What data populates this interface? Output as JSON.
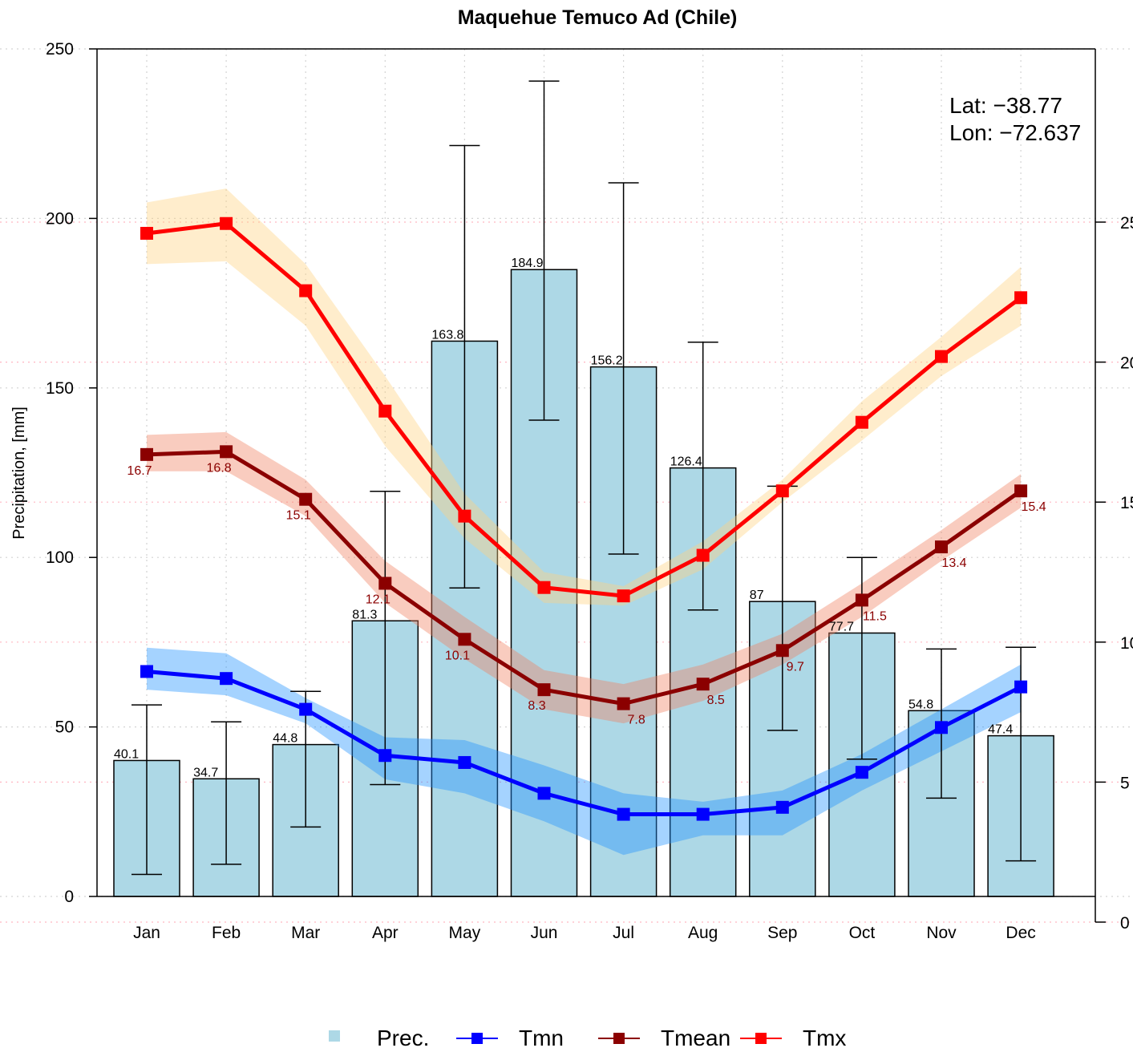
{
  "chart_data": {
    "type": "bar+line",
    "title": "Maquehue Temuco Ad (Chile)",
    "ylabel": "Precipitation, [mm]",
    "ylim": [
      0,
      250
    ],
    "yticks": [
      "0",
      "50",
      "100",
      "150",
      "200",
      "250"
    ],
    "right_ylim": [
      0,
      30
    ],
    "right_yticks": [
      "0",
      "5",
      "10",
      "15",
      "20",
      "25"
    ],
    "categories": [
      "Jan",
      "Feb",
      "Mar",
      "Apr",
      "May",
      "Jun",
      "Jul",
      "Aug",
      "Sep",
      "Oct",
      "Nov",
      "Dec"
    ],
    "precipitation": {
      "name": "Prec.",
      "values": [
        40.1,
        34.7,
        44.8,
        81.3,
        163.8,
        184.9,
        156.2,
        126.4,
        87,
        77.7,
        54.8,
        47.4
      ],
      "labels": [
        "40.1",
        "34.7",
        "44.8",
        "81.3",
        "163.8",
        "184.9",
        "156.2",
        "126.4",
        "87",
        "77.7",
        "54.8",
        "47.4"
      ],
      "err_low": [
        6.5,
        9.5,
        20.5,
        33,
        91,
        140.5,
        101,
        84.5,
        49,
        40.5,
        29,
        10.5
      ],
      "err_high": [
        56.5,
        51.5,
        60.5,
        119.5,
        221.5,
        240.5,
        210.5,
        163.5,
        121,
        100,
        73,
        73.5
      ]
    },
    "series": [
      {
        "name": "Tmn",
        "values": [
          8.95,
          8.7,
          7.6,
          5.95,
          5.7,
          4.6,
          3.85,
          3.85,
          4.1,
          5.35,
          6.95,
          8.4
        ],
        "band_low": [
          8.3,
          8.1,
          7.1,
          5.1,
          4.6,
          3.6,
          2.4,
          3.1,
          3.1,
          4.7,
          6.1,
          7.5
        ],
        "band_high": [
          9.8,
          9.6,
          8.0,
          6.6,
          6.5,
          5.6,
          4.6,
          4.3,
          4.7,
          6.0,
          7.6,
          9.2
        ],
        "color": "#0000ff",
        "band_color": "#1e90ff"
      },
      {
        "name": "Tmean",
        "values": [
          16.7,
          16.8,
          15.1,
          12.1,
          10.1,
          8.3,
          7.8,
          8.5,
          9.7,
          11.5,
          13.4,
          15.4
        ],
        "labels": [
          "16.7",
          "16.8",
          "15.1",
          "12.1",
          "10.1",
          "8.3",
          "7.8",
          "8.5",
          "9.7",
          "11.5",
          "13.4",
          "15.4"
        ],
        "band_low": [
          16.1,
          16.1,
          14.5,
          11.4,
          9.4,
          7.6,
          7.1,
          7.9,
          9.2,
          10.9,
          12.9,
          14.8
        ],
        "band_high": [
          17.4,
          17.5,
          15.8,
          12.9,
          10.9,
          9.0,
          8.5,
          9.2,
          10.3,
          12.1,
          14.0,
          16.0
        ],
        "color": "#8b0000",
        "band_color": "#f08060"
      },
      {
        "name": "Tmx",
        "values": [
          24.6,
          24.95,
          22.55,
          18.25,
          14.5,
          11.95,
          11.65,
          13.1,
          15.4,
          17.85,
          20.2,
          22.3
        ],
        "band_low": [
          23.5,
          23.6,
          21.3,
          17.0,
          13.7,
          11.4,
          11.3,
          12.6,
          15.0,
          17.2,
          19.5,
          21.3
        ],
        "band_high": [
          25.7,
          26.2,
          23.5,
          19.5,
          15.3,
          12.5,
          12.0,
          13.6,
          15.8,
          18.6,
          20.9,
          23.4
        ],
        "color": "#ff0000",
        "band_color": "#ffd280"
      }
    ],
    "annotations": {
      "lat": "Lat: −38.77",
      "lon": "Lon: −72.637"
    },
    "legend": {
      "placement": "bottom",
      "items": [
        "Prec.",
        "Tmn",
        "Tmean",
        "Tmx"
      ]
    },
    "grid": true,
    "colors": {
      "bar_fill": "#add8e6",
      "grid_right": "#ffb6c1"
    }
  }
}
